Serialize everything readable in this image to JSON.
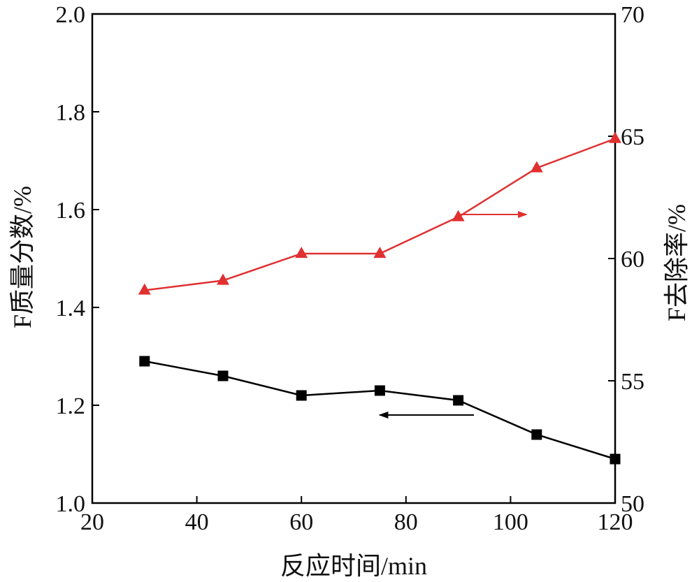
{
  "chart_data": {
    "type": "line",
    "xlabel": "反应时间/min",
    "ylabel": "F质量分数/%",
    "y2label": "F去除率/%",
    "xlim": [
      20,
      120
    ],
    "ylim": [
      1.0,
      2.0
    ],
    "y2lim": [
      50,
      70
    ],
    "x_ticks": [
      "20",
      "40",
      "60",
      "80",
      "100",
      "120"
    ],
    "y_ticks": [
      "1.0",
      "1.2",
      "1.4",
      "1.6",
      "1.8",
      "2.0"
    ],
    "y2_ticks": [
      "50",
      "55",
      "60",
      "65",
      "70"
    ],
    "grid": false,
    "x": [
      30,
      45,
      60,
      75,
      90,
      105,
      120
    ],
    "series": [
      {
        "axis": "left",
        "marker": "square",
        "color": "#000000",
        "values": [
          1.29,
          1.26,
          1.22,
          1.23,
          1.21,
          1.14,
          1.09
        ]
      },
      {
        "axis": "right",
        "marker": "triangle",
        "color": "#e03030",
        "values": [
          58.7,
          59.1,
          60.2,
          60.2,
          61.7,
          63.7,
          64.9
        ]
      }
    ],
    "annotations": [
      {
        "type": "arrow",
        "direction": "left",
        "series": 0,
        "x_from": 93,
        "x_to": 75,
        "y": 1.18
      },
      {
        "type": "arrow",
        "direction": "right",
        "series": 1,
        "x_from": 90,
        "x_to": 103,
        "y2": 61.8
      }
    ]
  }
}
